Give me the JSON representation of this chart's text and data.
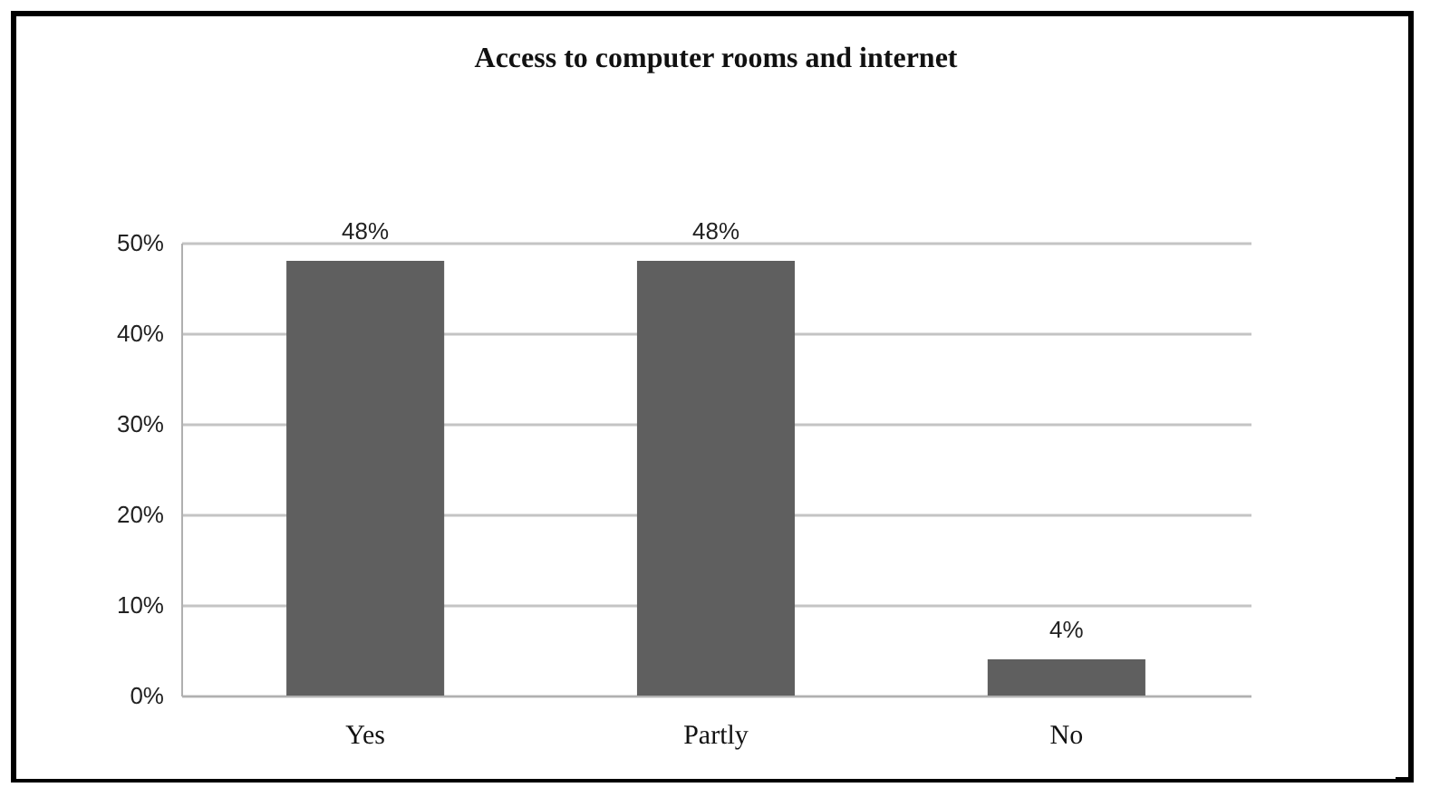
{
  "chart_data": {
    "type": "bar",
    "title": "Access to computer rooms and internet",
    "categories": [
      "Yes",
      "Partly",
      "No"
    ],
    "values": [
      48,
      48,
      4
    ],
    "color": "#5f5f5f",
    "value_labels": [
      "48%",
      "48%",
      "4%"
    ],
    "ylim": [
      0,
      50
    ],
    "yticks": [
      {
        "value": 0,
        "label": "0%"
      },
      {
        "value": 10,
        "label": "10%"
      },
      {
        "value": 20,
        "label": "20%"
      },
      {
        "value": 30,
        "label": "30%"
      },
      {
        "value": 40,
        "label": "40%"
      },
      {
        "value": 50,
        "label": "50%"
      }
    ],
    "grid": "y"
  }
}
